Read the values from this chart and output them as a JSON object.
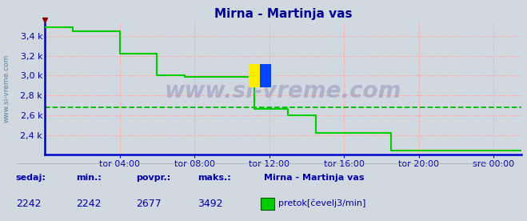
{
  "title": "Mirna - Martinja vas",
  "bg_color": "#d0d8e0",
  "plot_bg_color": "#d0d8e0",
  "line_color": "#00cc00",
  "avg_line_color": "#00bb00",
  "avg_value": 2677,
  "min_value": 2242,
  "max_value": 3492,
  "current_value": 2242,
  "ylabel_text": "www.si-vreme.com",
  "yticks": [
    2400,
    2600,
    2800,
    3000,
    3200,
    3400
  ],
  "ytick_labels": [
    "2,4 k",
    "2,6 k",
    "2,8 k",
    "3,0 k",
    "3,2 k",
    "3,4 k"
  ],
  "ylim": [
    2200,
    3530
  ],
  "xtick_labels": [
    "tor 04:00",
    "tor 08:00",
    "tor 12:00",
    "tor 16:00",
    "tor 20:00",
    "sre 00:00"
  ],
  "xtick_positions": [
    4,
    8,
    12,
    16,
    20,
    24
  ],
  "xlim": [
    0,
    25.5
  ],
  "grid_color": "#ffaaaa",
  "axis_color": "#0000cc",
  "title_color": "#000099",
  "label_color": "#0000aa",
  "watermark": "www.si-vreme.com",
  "footer_labels": [
    "sedaj:",
    "min.:",
    "povpr.:",
    "maks.:"
  ],
  "footer_values": [
    "2242",
    "2242",
    "2677",
    "3492"
  ],
  "footer_station": "Mirna - Martinja vas",
  "footer_legend": "pretok[čevelj3/min]",
  "data_x": [
    0,
    1.5,
    1.5,
    4.0,
    4.0,
    6.0,
    6.0,
    7.5,
    7.5,
    11.2,
    11.2,
    13.0,
    13.0,
    14.5,
    14.5,
    18.5,
    18.5,
    19.2,
    19.2,
    25.5
  ],
  "data_y": [
    3492,
    3492,
    3450,
    3450,
    3220,
    3220,
    3000,
    3000,
    2990,
    2990,
    2660,
    2660,
    2600,
    2600,
    2420,
    2420,
    2242,
    2242,
    2242,
    2242
  ]
}
